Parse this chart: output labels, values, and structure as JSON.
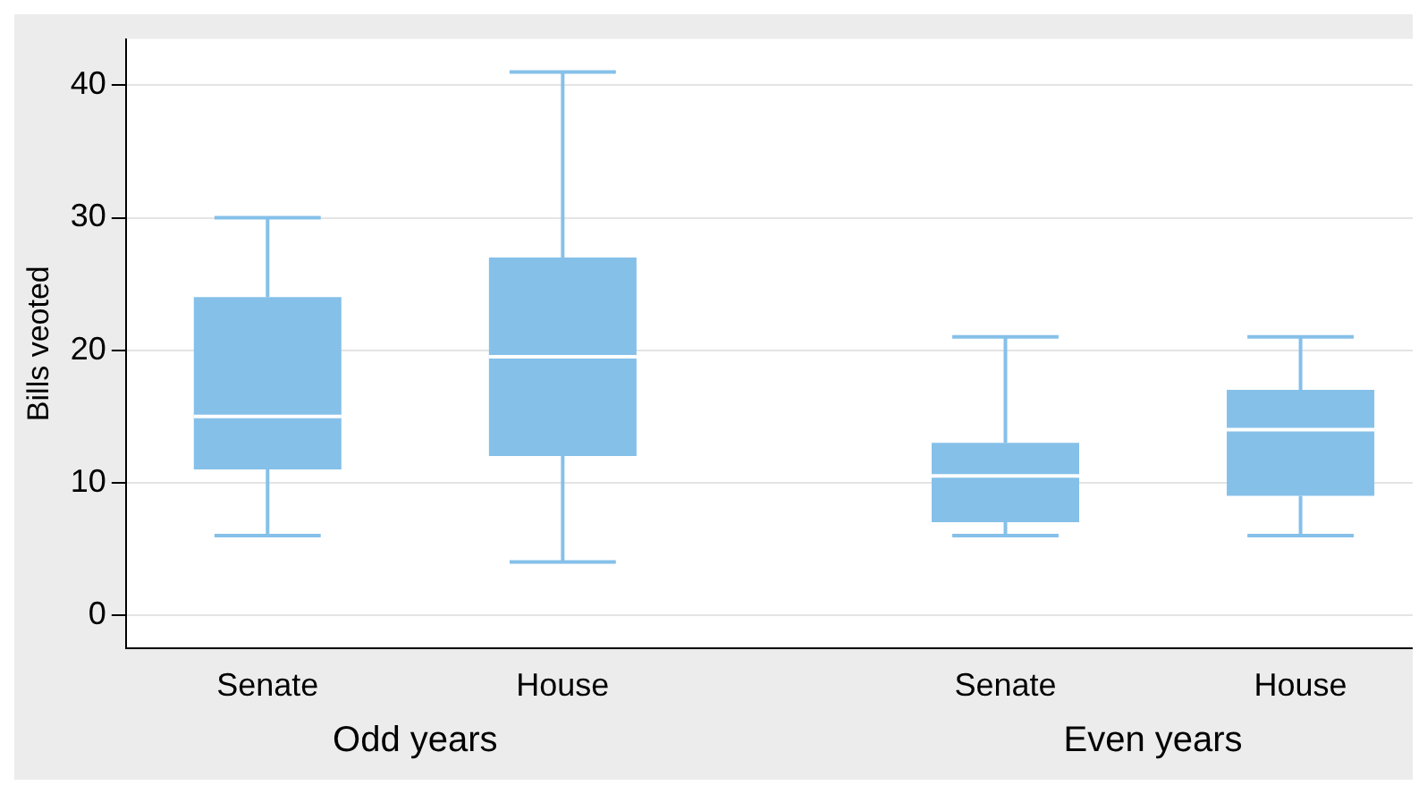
{
  "chart_data": {
    "type": "box",
    "ylabel": "Bills veoted",
    "categories": [
      "Senate",
      "House",
      "Senate",
      "House"
    ],
    "boxes": [
      {
        "low": 6,
        "q1": 11,
        "median": 15,
        "q3": 24,
        "high": 30
      },
      {
        "low": 4,
        "q1": 12,
        "median": 19.5,
        "q3": 27,
        "high": 41
      },
      {
        "low": 6,
        "q1": 7,
        "median": 10.5,
        "q3": 13,
        "high": 21
      },
      {
        "low": 6,
        "q1": 9,
        "median": 14,
        "q3": 17,
        "high": 21
      }
    ],
    "color": "#85c0e9",
    "ylim": [
      -2.5,
      43.5
    ],
    "yticks": [
      0,
      10,
      20,
      30,
      40
    ],
    "grid": "y",
    "annotations": [
      "Odd years",
      "Even years"
    ]
  }
}
